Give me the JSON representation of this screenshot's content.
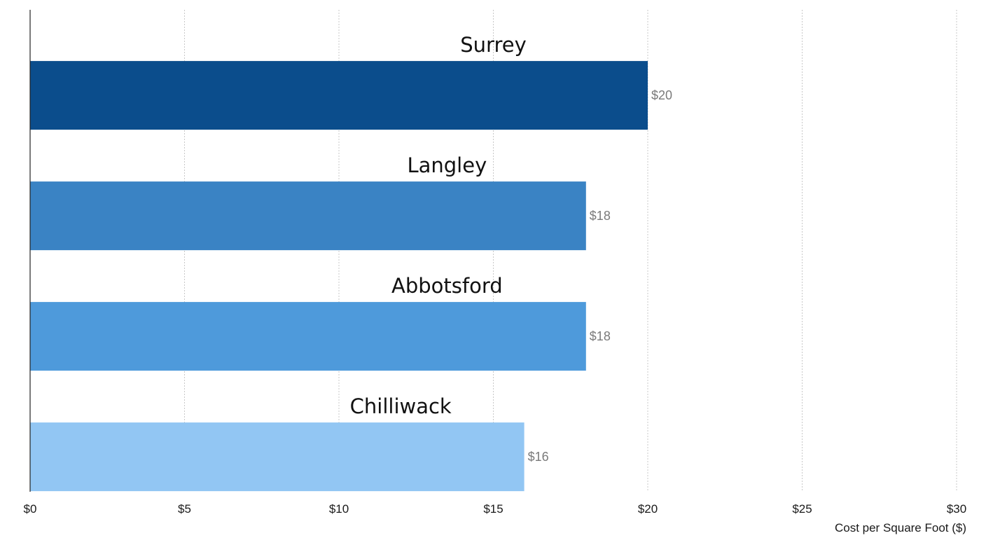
{
  "chart_data": {
    "type": "bar",
    "orientation": "horizontal",
    "categories": [
      "Surrey",
      "Langley",
      "Abbotsford",
      "Chilliwack"
    ],
    "values": [
      20,
      18,
      18,
      16
    ],
    "value_labels": [
      "$20",
      "$18",
      "$18",
      "$16"
    ],
    "bar_colors": [
      "#0b4d8c",
      "#3a83c4",
      "#4e9adb",
      "#92c6f3"
    ],
    "title": "",
    "xlabel": "Cost per Square Foot ($)",
    "ylabel": "",
    "xlim": [
      0,
      30
    ],
    "x_ticks": [
      0,
      5,
      10,
      15,
      20,
      25,
      30
    ],
    "x_tick_labels": [
      "$0",
      "$5",
      "$10",
      "$15",
      "$20",
      "$25",
      "$30"
    ],
    "grid": true,
    "legend": "none"
  }
}
